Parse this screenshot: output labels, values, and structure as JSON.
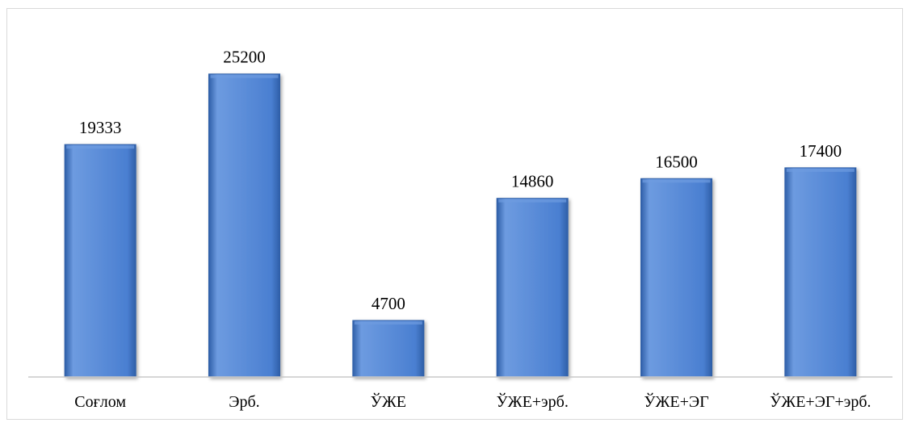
{
  "chart_data": {
    "type": "bar",
    "categories": [
      "Соғлом",
      "Эрб.",
      "ЎЖЕ",
      "ЎЖЕ+эрб.",
      "ЎЖЕ+ЭГ",
      "ЎЖЕ+ЭГ+эрб."
    ],
    "values": [
      19333,
      25200,
      4700,
      14860,
      16500,
      17400
    ],
    "title": "",
    "xlabel": "",
    "ylabel": "",
    "ylim": [
      0,
      28000
    ],
    "grid": false,
    "legend": "none",
    "data_labels": true,
    "bar_color": "#4a7fd1",
    "bar_color_dark": "#2f5fa8",
    "bar_color_light": "#6d9be0"
  }
}
